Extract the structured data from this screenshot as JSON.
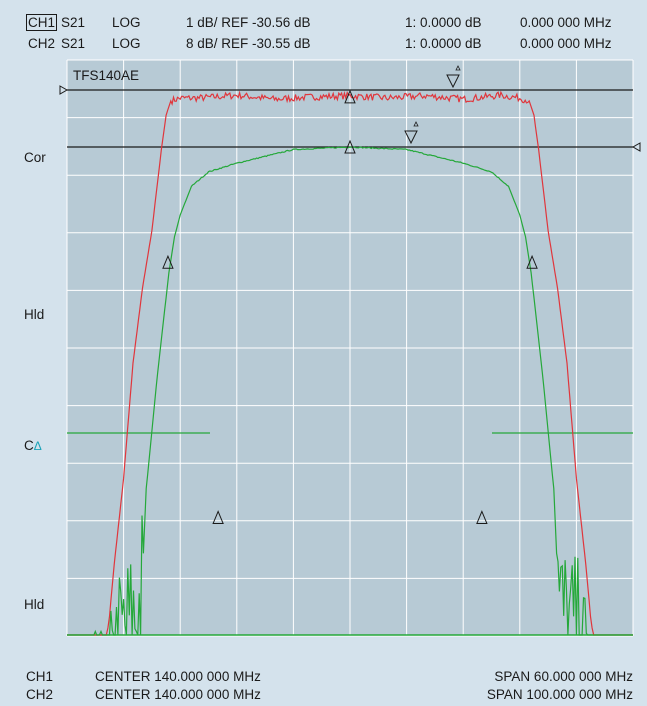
{
  "header": {
    "ch1_label": "CH1",
    "ch1_param": "S21",
    "ch1_format": "LOG",
    "ch1_scale": "1 dB/ REF -30.56 dB",
    "ch1_marker": "1: 0.0000 dB",
    "ch1_freq": "0.000 000 MHz",
    "ch2_label": "CH2",
    "ch2_param": "S21",
    "ch2_format": "LOG",
    "ch2_scale": "8 dB/ REF -30.55 dB",
    "ch2_marker": "1: 0.0000 dB",
    "ch2_freq": "0.000 000 MHz"
  },
  "side_labels": {
    "cor": "Cor",
    "hld1": "Hld",
    "c_delta_c": "C",
    "c_delta_d": "Δ",
    "hld2": "Hld"
  },
  "footer": {
    "ch1_label": "CH1",
    "ch1_center": "CENTER 140.000 000 MHz",
    "ch1_span": "SPAN 60.000 000 MHz",
    "ch2_label": "CH2",
    "ch2_center": "CENTER 140.000 000 MHz",
    "ch2_span": "SPAN 100.000 000 MHz"
  },
  "colors": {
    "background": "#d4e2ec",
    "plot_area": "#b7cad5",
    "grid": "#ffffff",
    "ch1_trace": "#e0363c",
    "ch2_trace": "#25a83a",
    "marker_delta": "#1aa3b8"
  },
  "chart_data": {
    "type": "line",
    "title": "TFS140AE",
    "grid": true,
    "x_divisions": 10,
    "y_divisions": 10,
    "series": [
      {
        "name": "CH1",
        "x": [
          -30,
          -27,
          -26.5,
          -26,
          -25.5,
          -25,
          -24,
          -23,
          -22,
          -21,
          -20.5,
          -20,
          -19.5,
          -19,
          -18,
          -16,
          -12,
          -8,
          -4,
          0,
          4,
          8,
          12,
          16,
          18,
          19,
          19.5,
          20,
          20.5,
          21,
          22,
          23,
          24,
          25,
          25.5,
          26,
          26.5,
          27,
          30
        ],
        "y": [
          -41,
          -41,
          -40.6,
          -40.3,
          -39.7,
          -38.8,
          -37.3,
          -35.3,
          -34.0,
          -33.0,
          -32.3,
          -31.6,
          -31.0,
          -30.75,
          -30.7,
          -30.7,
          -30.65,
          -30.72,
          -30.68,
          -30.66,
          -30.7,
          -30.66,
          -30.72,
          -30.65,
          -30.7,
          -30.75,
          -31.0,
          -31.6,
          -32.3,
          -33.0,
          -34.0,
          -35.3,
          -37.3,
          -38.8,
          -39.7,
          -40.3,
          -40.6,
          -41,
          -41
        ]
      },
      {
        "name": "CH2",
        "x": [
          -50,
          -43,
          -42,
          -41,
          -40,
          -39,
          -38,
          -37,
          -36.5,
          -36,
          -35,
          -34,
          -33,
          -32,
          -31,
          -30,
          -28,
          -25,
          -20,
          -10,
          0,
          10,
          20,
          25,
          28,
          30,
          31,
          32,
          33,
          34,
          35,
          36,
          36.5,
          37,
          38,
          39,
          40,
          41,
          42,
          43,
          50
        ],
        "y": [
          -110,
          -108,
          -104,
          -100,
          -98,
          -97,
          -96,
          -94,
          -87,
          -78,
          -70,
          -62,
          -55,
          -48,
          -43,
          -40,
          -36,
          -34,
          -32.8,
          -30.9,
          -30.55,
          -30.9,
          -32.8,
          -34,
          -36,
          -40,
          -43,
          -48,
          -55,
          -62,
          -70,
          -78,
          -87,
          -94,
          -96,
          -97,
          -98,
          -100,
          -104,
          -108,
          -110
        ]
      }
    ],
    "markers": [
      {
        "series": "CH1",
        "x": 0,
        "y": -30.68
      },
      {
        "series": "CH1",
        "x": -19.3,
        "y": -33.55
      },
      {
        "series": "CH1",
        "x": 19.3,
        "y": -33.55
      },
      {
        "series": "CH2",
        "x": 0,
        "y": -30.55
      },
      {
        "series": "CH2",
        "x": -23.3,
        "y": -82.0
      },
      {
        "series": "CH2",
        "x": 23.3,
        "y": -82.0
      }
    ]
  }
}
